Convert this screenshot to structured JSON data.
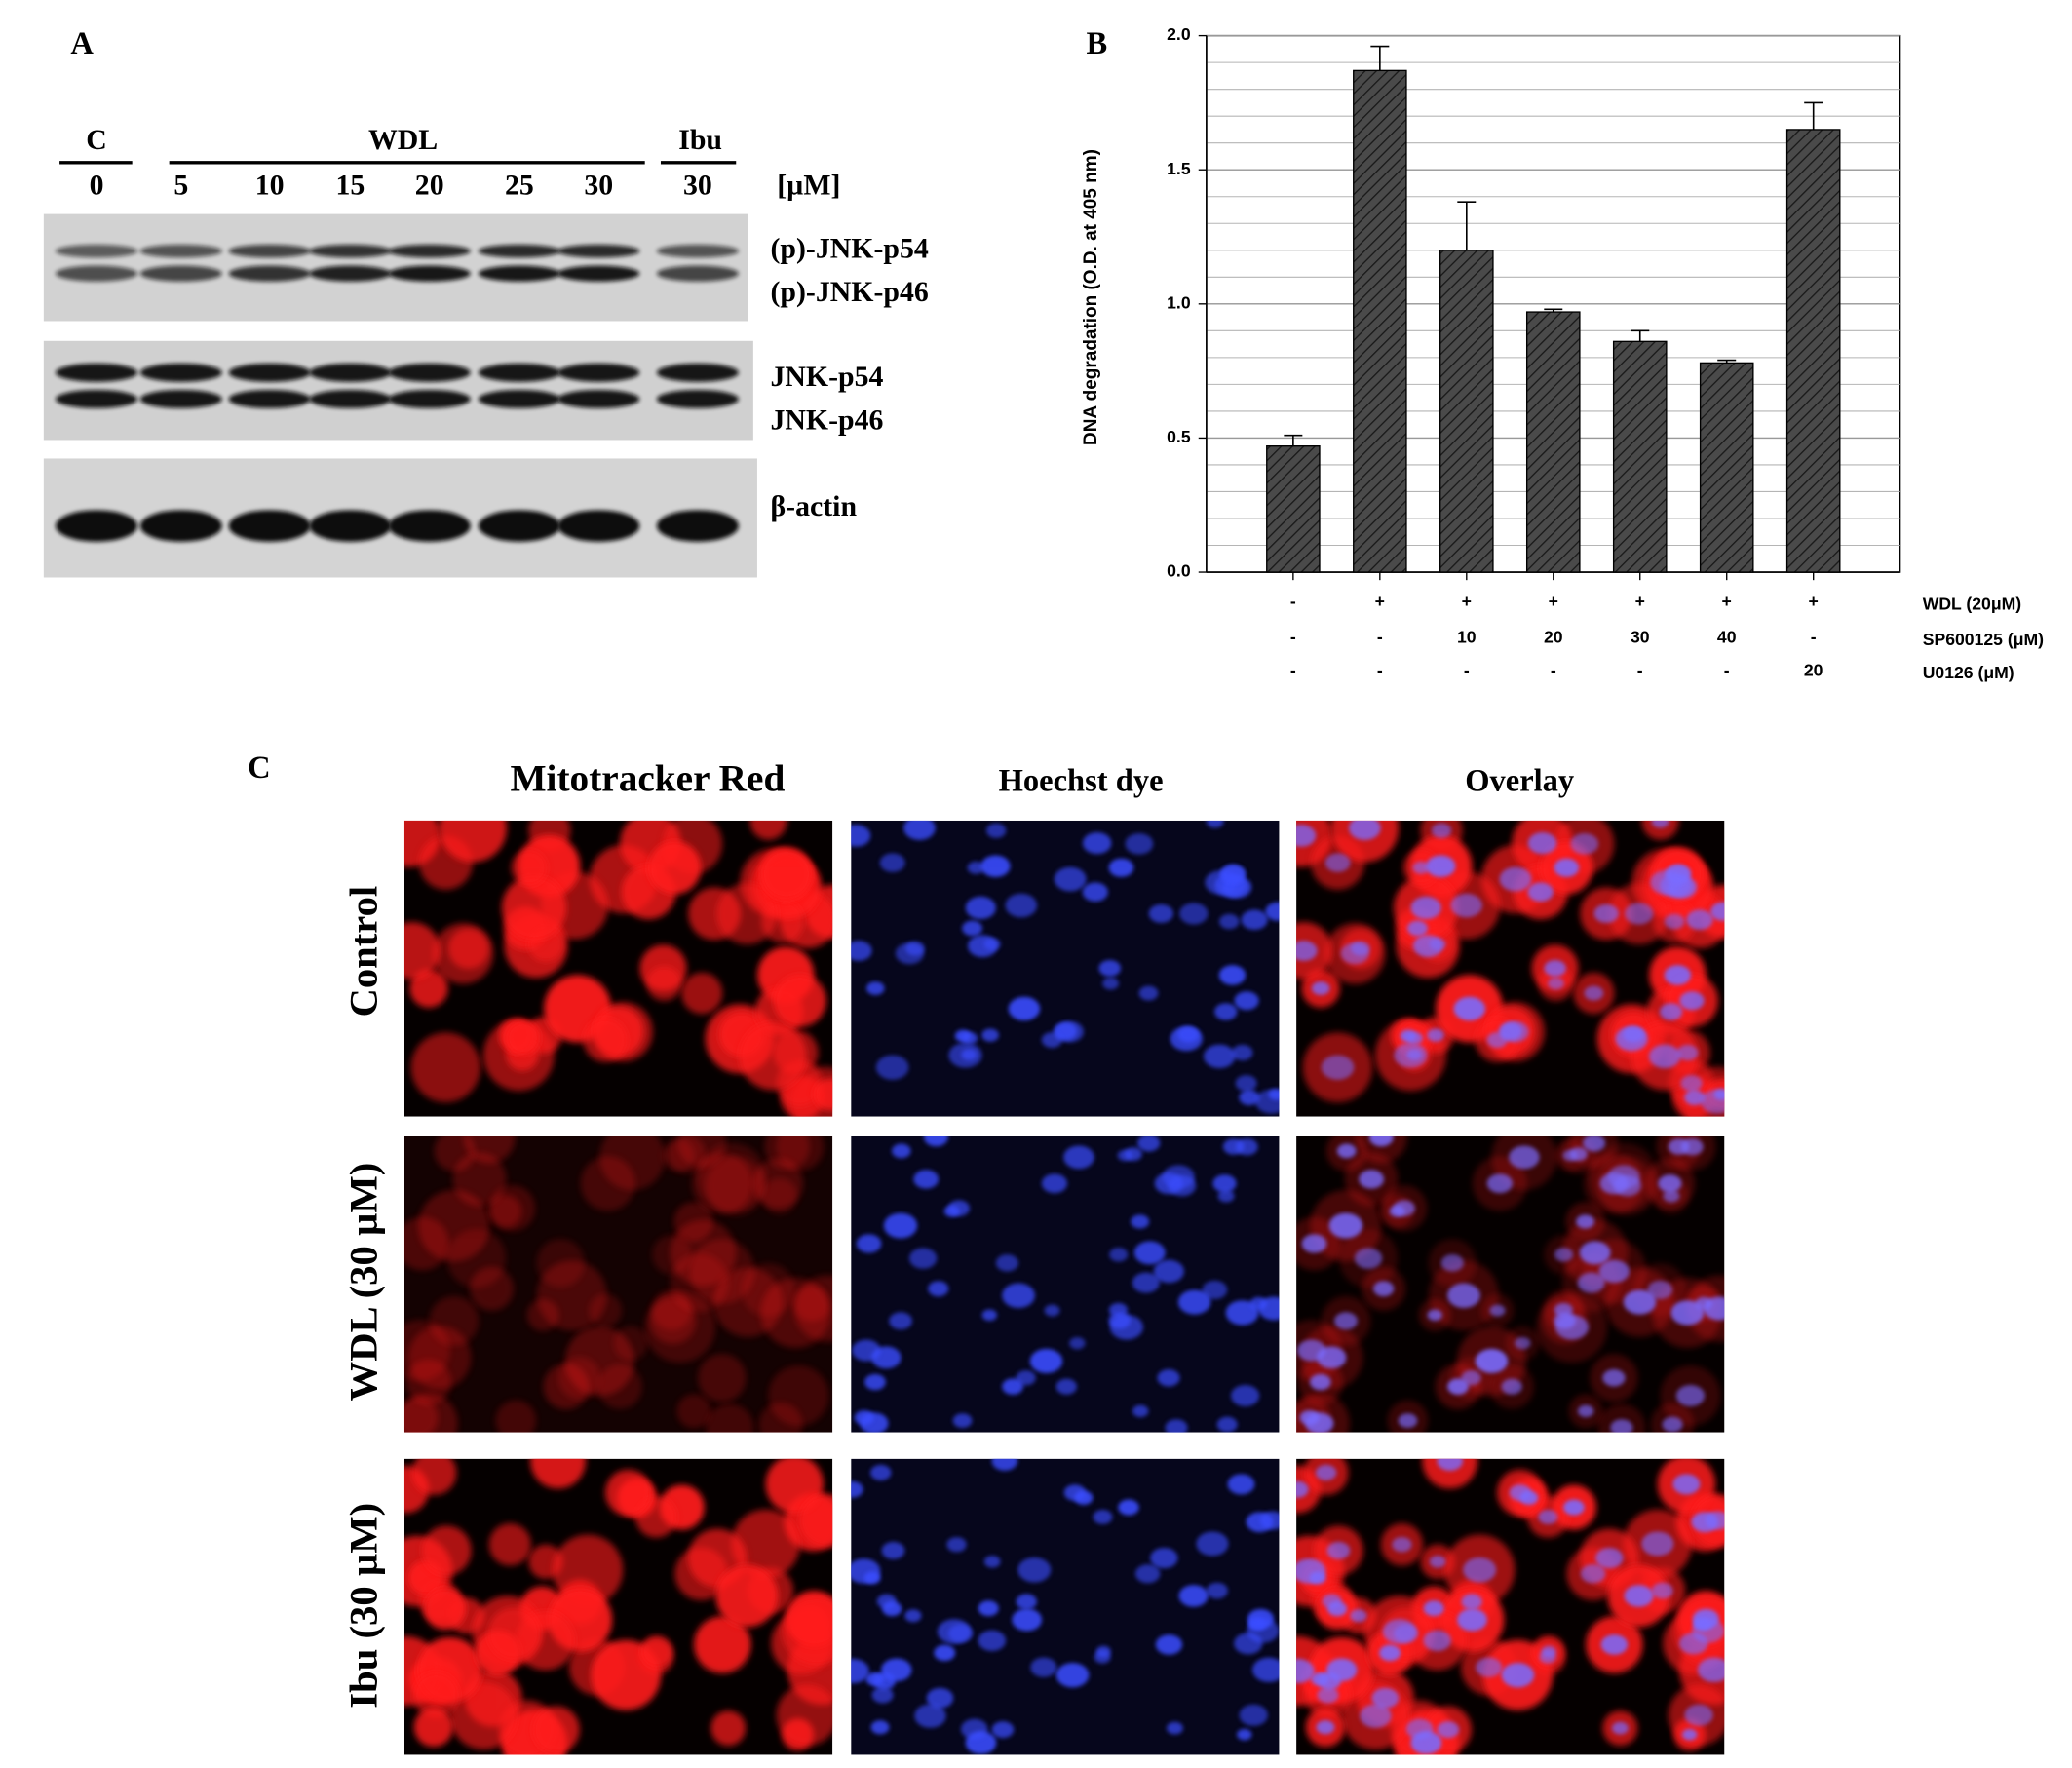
{
  "panel_a": {
    "label": "A",
    "groups": [
      "C",
      "WDL",
      "Ibu"
    ],
    "concentrations": [
      0,
      5,
      10,
      15,
      20,
      25,
      30,
      30
    ],
    "unit": "[µM]",
    "bands": [
      "(p)-JNK-p54",
      "(p)-JNK-p46",
      "JNK-p54",
      "JNK-p46",
      "β-actin"
    ]
  },
  "chart_data": {
    "type": "bar",
    "label": "B",
    "ylabel": "DNA degradation (O.D. at 405 nm)",
    "values": [
      0.47,
      1.87,
      1.2,
      0.97,
      0.86,
      0.78,
      1.65
    ],
    "errors": [
      0.04,
      0.09,
      0.18,
      0.01,
      0.04,
      0.01,
      0.1
    ],
    "color": "#4a4a4a",
    "ylim": [
      0,
      2
    ],
    "yticks": [
      {
        "value": 0,
        "label": "0.0"
      },
      {
        "value": 0.5,
        "label": "0.5"
      },
      {
        "value": 1,
        "label": "1.0"
      },
      {
        "value": 1.5,
        "label": "1.5"
      },
      {
        "value": 2,
        "label": "2.0"
      }
    ],
    "grid": true,
    "minor_grid_step": 0.1,
    "treatments": [
      {
        "name": "WDL (20μM)",
        "cells": [
          "-",
          "+",
          "+",
          "+",
          "+",
          "+",
          "+"
        ]
      },
      {
        "name": "SP600125 (μM)",
        "cells": [
          "-",
          "-",
          "10",
          "20",
          "30",
          "40",
          "-"
        ]
      },
      {
        "name": "U0126 (μM)",
        "cells": [
          "-",
          "-",
          "-",
          "-",
          "-",
          "-",
          "20"
        ]
      }
    ]
  },
  "panel_c": {
    "label": "C",
    "columns": [
      "Mitotracker Red",
      "Hoechst dye",
      "Overlay"
    ],
    "rows": [
      "Control",
      "WDL (30 µM)",
      "Ibu (30 µM)"
    ]
  }
}
